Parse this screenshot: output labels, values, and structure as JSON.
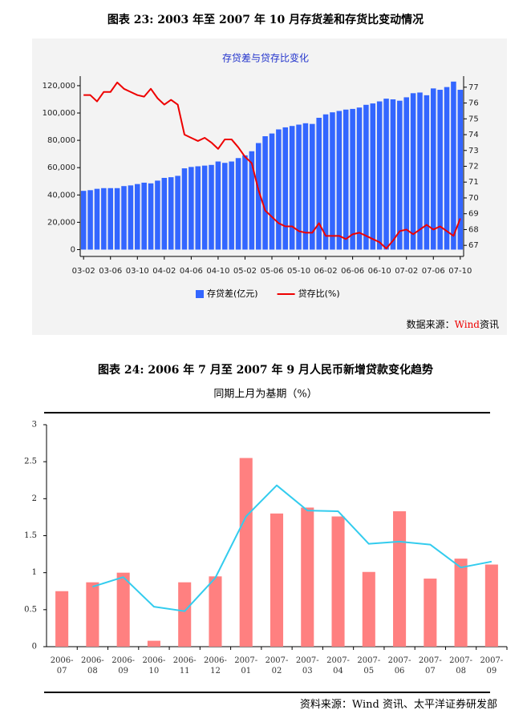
{
  "chart_data": [
    {
      "type": "bar",
      "caption": "图表 23: 2003 年至 2007 年 10 月存货差和存货比变动情况",
      "title": "存贷差与贷存比变化",
      "source": [
        "数据来源：",
        "Wind",
        "资讯"
      ],
      "categories": [
        "03-02",
        null,
        null,
        null,
        "03-06",
        null,
        null,
        null,
        "03-10",
        null,
        null,
        null,
        "04-02",
        null,
        null,
        null,
        "04-06",
        null,
        null,
        null,
        "04-10",
        null,
        null,
        null,
        "05-02",
        null,
        null,
        null,
        "05-06",
        null,
        null,
        null,
        "05-10",
        null,
        null,
        null,
        "06-02",
        null,
        null,
        null,
        "06-06",
        null,
        null,
        null,
        "06-10",
        null,
        null,
        null,
        "07-02",
        null,
        null,
        null,
        "07-06",
        null,
        null,
        null,
        "07-10"
      ],
      "series": [
        {
          "name": "存贷差(亿元)",
          "type": "bar",
          "color": "#3366ff",
          "values": [
            43000,
            43500,
            44500,
            45000,
            45000,
            45000,
            46500,
            47000,
            48000,
            49000,
            48500,
            50500,
            52500,
            53000,
            54000,
            59500,
            60500,
            61000,
            61500,
            62000,
            64500,
            63500,
            64500,
            67000,
            69000,
            72000,
            78000,
            83000,
            85000,
            88000,
            89500,
            90500,
            91500,
            92500,
            92000,
            96500,
            99000,
            100500,
            101500,
            102500,
            103000,
            104000,
            106000,
            107000,
            108500,
            110500,
            110000,
            109000,
            111500,
            114500,
            115000,
            113000,
            118000,
            117000,
            119000,
            123000,
            117000
          ]
        },
        {
          "name": "贷存比(%)",
          "type": "line",
          "axis": "y2",
          "color": "#ee0000",
          "values": [
            76.5,
            76.5,
            76.1,
            76.7,
            76.7,
            77.3,
            76.9,
            76.7,
            76.5,
            76.4,
            76.9,
            76.3,
            75.9,
            76.2,
            75.9,
            74.0,
            73.8,
            73.6,
            73.8,
            73.5,
            73.1,
            73.7,
            73.7,
            73.2,
            72.6,
            72.2,
            70.5,
            69.2,
            68.8,
            68.4,
            68.2,
            68.2,
            67.9,
            67.8,
            67.8,
            68.4,
            67.6,
            67.6,
            67.6,
            67.4,
            67.7,
            67.8,
            67.6,
            67.4,
            67.2,
            66.8,
            67.3,
            67.9,
            68.0,
            67.7,
            68.0,
            68.3,
            68.0,
            68.2,
            67.9,
            67.6,
            68.7
          ]
        }
      ],
      "ylim": [
        -5000,
        127000
      ],
      "yticks": [
        0,
        {
          "value": 20000,
          "label": "20,000"
        },
        {
          "value": 40000,
          "label": "40,000"
        },
        {
          "value": 60000,
          "label": "60,000"
        },
        {
          "value": 80000,
          "label": "80,000"
        },
        {
          "value": 100000,
          "label": "100,000"
        },
        {
          "value": 120000,
          "label": "120,000"
        }
      ],
      "y2lim": [
        66.3,
        77.7
      ],
      "y2ticks": [
        67,
        68,
        69,
        70,
        71,
        72,
        73,
        74,
        75,
        76,
        77
      ],
      "legend": "bottom",
      "grid": false
    },
    {
      "type": "bar",
      "caption": "图表 24: 2006 年 7 月至 2007 年 9 月人民币新增贷款变化趋势",
      "title": "同期上月为基期（%）",
      "source": [
        "资料来源：Wind 资讯、太平洋证券研发部"
      ],
      "categories": [
        "2006-07",
        "2006-08",
        "2006-09",
        "2006-10",
        "2006-11",
        "2006-12",
        "2007-01",
        "2007-02",
        "2007-03",
        "2007-04",
        "2007-05",
        "2007-06",
        "2007-07",
        "2007-08",
        "2007-09"
      ],
      "series": [
        {
          "type": "bar",
          "color": "#ff8080",
          "values": [
            0.75,
            0.87,
            1.0,
            0.08,
            0.87,
            0.95,
            2.55,
            1.8,
            1.88,
            1.76,
            1.01,
            1.83,
            0.92,
            1.19,
            1.11
          ]
        },
        {
          "type": "line",
          "color": "#33ccee",
          "values": [
            null,
            0.81,
            0.94,
            0.54,
            0.48,
            0.93,
            1.76,
            2.18,
            1.84,
            1.83,
            1.39,
            1.42,
            1.38,
            1.07,
            1.15
          ]
        }
      ],
      "ylim": [
        0,
        3
      ],
      "yticks": [
        0,
        0.5,
        1,
        1.5,
        2,
        2.5,
        3
      ],
      "grid": false
    }
  ]
}
